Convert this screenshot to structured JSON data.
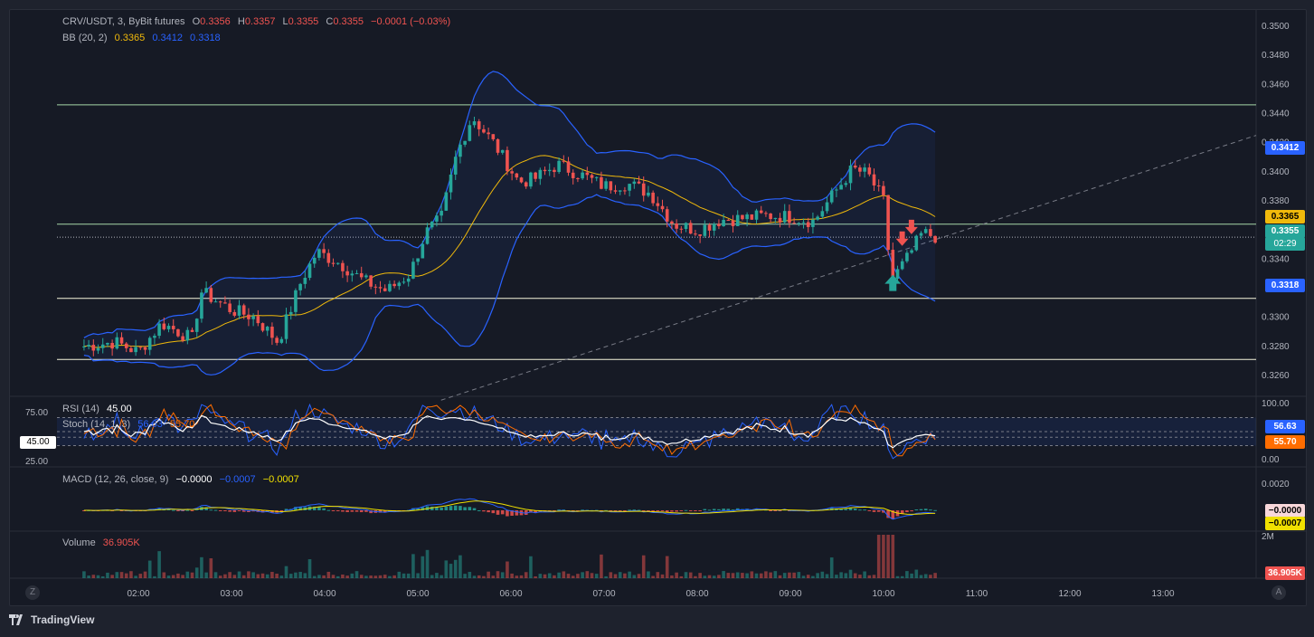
{
  "main_legend": {
    "symbol": "CRV/USDT, 3, ByBit futures",
    "open_label": "O",
    "open": "0.3356",
    "high_label": "H",
    "high": "0.3357",
    "low_label": "L",
    "low": "0.3355",
    "close_label": "C",
    "close": "0.3355",
    "change": "−0.0001 (−0.03%)"
  },
  "bb_legend": {
    "label": "BB (20, 2)",
    "basis": "0.3365",
    "upper": "0.3412",
    "lower": "0.3318"
  },
  "rsi_legend": {
    "label": "RSI (14)",
    "value": "45.00",
    "stoch_label": "Stoch (14, 1, 3)",
    "k": "56.63",
    "d": "55.70"
  },
  "macd_legend": {
    "label": "MACD (12, 26, close, 9)",
    "hist": "−0.0000",
    "macd": "−0.0007",
    "signal": "−0.0007"
  },
  "volume_legend": {
    "label": "Volume",
    "value": "36.905K"
  },
  "price_axis_ticks": [
    "0.3500",
    "0.3480",
    "0.3460",
    "0.3440",
    "0.3420",
    "0.3400",
    "0.3380",
    "0.3340",
    "0.3300",
    "0.3280",
    "0.3260"
  ],
  "price_tags": {
    "upper": "0.3412",
    "basis": "0.3365",
    "last": "0.3355",
    "countdown": "02:29",
    "lower": "0.3318"
  },
  "rsi_axis_ticks": [
    "100.00",
    "0.00"
  ],
  "rsi_left_ticks": {
    "top": "75.00",
    "current": "45.00",
    "bottom": "25.00"
  },
  "rsi_tags": {
    "k": "56.63",
    "d": "55.70"
  },
  "macd_axis_ticks": [
    "0.0020"
  ],
  "macd_tags": {
    "hist": "−0.0000",
    "signal": "−0.0007"
  },
  "volume_axis_ticks": [
    "2M"
  ],
  "volume_tag": "36.905K",
  "time_axis": [
    "02:00",
    "03:00",
    "04:00",
    "05:00",
    "06:00",
    "07:00",
    "08:00",
    "09:00",
    "10:00",
    "11:00",
    "12:00",
    "13:00"
  ],
  "corner_buttons": {
    "left": "Z",
    "right": "A"
  },
  "brand": "TradingView",
  "colors": {
    "up": "#26a69a",
    "down": "#ef5350",
    "bb": "#2962ff",
    "basis": "#f0b90b",
    "bg": "#161a25"
  },
  "chart_data": {
    "type": "candlestick",
    "timeframe": "3m",
    "last_close": 0.3355,
    "bollinger": {
      "basis": 0.3365,
      "upper": 0.3412,
      "lower": 0.3318
    },
    "horizontal_levels": [
      0.3446,
      0.3364,
      0.3313,
      0.3271
    ],
    "close_path": [
      [
        "01:25",
        0.328
      ],
      [
        "01:45",
        0.3283
      ],
      [
        "02:00",
        0.3276
      ],
      [
        "02:15",
        0.3296
      ],
      [
        "02:35",
        0.3285
      ],
      [
        "02:40",
        0.3318
      ],
      [
        "03:00",
        0.3305
      ],
      [
        "03:15",
        0.33
      ],
      [
        "03:30",
        0.3283
      ],
      [
        "03:45",
        0.3325
      ],
      [
        "03:55",
        0.3345
      ],
      [
        "04:10",
        0.3337
      ],
      [
        "04:25",
        0.3325
      ],
      [
        "04:40",
        0.3318
      ],
      [
        "04:55",
        0.333
      ],
      [
        "05:05",
        0.3358
      ],
      [
        "05:15",
        0.3368
      ],
      [
        "05:25",
        0.3412
      ],
      [
        "05:35",
        0.3438
      ],
      [
        "05:50",
        0.3418
      ],
      [
        "06:05",
        0.3393
      ],
      [
        "06:15",
        0.3395
      ],
      [
        "06:30",
        0.3405
      ],
      [
        "06:45",
        0.3398
      ],
      [
        "07:00",
        0.339
      ],
      [
        "07:15",
        0.3392
      ],
      [
        "07:30",
        0.3385
      ],
      [
        "07:45",
        0.3364
      ],
      [
        "08:00",
        0.336
      ],
      [
        "08:15",
        0.3367
      ],
      [
        "08:30",
        0.3368
      ],
      [
        "08:45",
        0.337
      ],
      [
        "09:00",
        0.3369
      ],
      [
        "09:15",
        0.3366
      ],
      [
        "09:30",
        0.3388
      ],
      [
        "09:40",
        0.3402
      ],
      [
        "09:50",
        0.3398
      ],
      [
        "10:00",
        0.338
      ],
      [
        "10:05",
        0.3325
      ],
      [
        "10:15",
        0.334
      ],
      [
        "10:25",
        0.3358
      ],
      [
        "10:35",
        0.3355
      ]
    ],
    "rsi_range": [
      0,
      100
    ],
    "price_range": [
      0.325,
      0.3505
    ]
  }
}
